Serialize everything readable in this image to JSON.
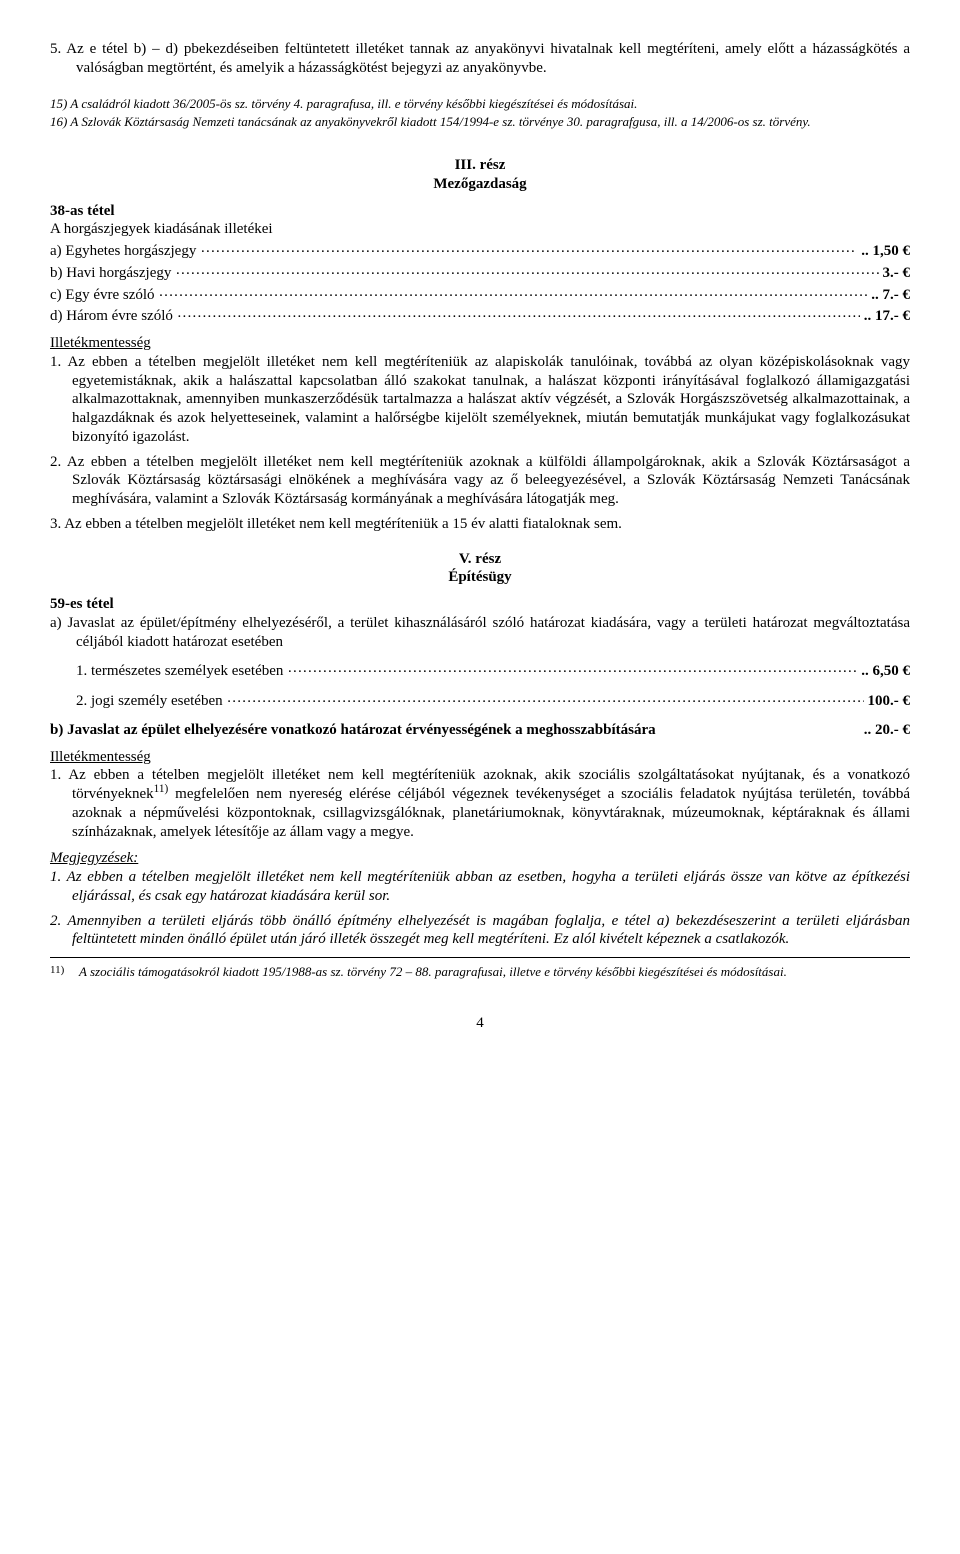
{
  "top_paragraph": {
    "num": "5.",
    "text": "Az e tétel b) – d) pbekezdéseiben feltüntetett illetéket tannak az anyakönyvi hivatalnak kell megtéríteni, amely előtt a házasságkötés a valóságban megtörtént, és amelyik a házasságkötést bejegyzi az anyakönyvbe."
  },
  "footnotes_top": {
    "f15": {
      "num": "15)",
      "text": "A családról kiadott 36/2005-ös sz. törvény 4. paragrafusa, ill. e törvény későbbi kiegészítései és módosításai."
    },
    "f16": {
      "num": "16)",
      "text": "A Szlovák Köztársaság Nemzeti tanácsának az anyakönyvekről kiadott 154/1994-e sz. törvénye 30. paragrafgusa, ill. a 14/2006-os sz. törvény."
    }
  },
  "section3": {
    "part_label": "III. rész",
    "part_title": "Mezőgazdaság",
    "item_heading": "38-as tétel",
    "subheading": "A horgászjegyek kiadásának illetékei",
    "rows": {
      "a": {
        "lead": "a)  Egyhetes horgászjegy",
        "tail": ".. 1,50 €"
      },
      "b": {
        "lead": "b)  Havi horgászjegy",
        "tail": " 3.- €"
      },
      "c": {
        "lead": "c)  Egy évre szóló",
        "tail": ".. 7.- €"
      },
      "d": {
        "lead": "d)  Három évre szóló",
        "tail": ".. 17.- €"
      }
    },
    "exempt_heading": "Illetékmentesség",
    "exempt": {
      "e1": {
        "num": "1.",
        "text": "Az ebben a tételben megjelölt illetéket nem kell megtéríteniük az alapiskolák tanulóinak, továbbá az olyan középiskolásoknak vagy egyetemistáknak, akik a halászattal kapcsolatban álló szakokat tanulnak, a halászat központi irányításával foglalkozó államigazgatási alkalmazottaknak, amennyiben munkaszerződésük tartalmazza a halászat aktív végzését, a Szlovák Horgászszövetség alkalmazottainak, a halgazdáknak és azok helyetteseinek, valamint a halőrségbe kijelölt személyeknek, miután bemutatják munkájukat vagy foglalkozásukat bizonyító igazolást."
      },
      "e2": {
        "num": "2.",
        "text": "Az ebben a tételben megjelölt illetéket nem kell megtéríteniük azoknak a külföldi állampolgároknak, akik a Szlovák Köztársaságot a Szlovák Köztársaság köztársasági elnökének a meghívására vagy az ő beleegyezésével, a Szlovák Köztársaság Nemzeti Tanácsának meghívására, valamint a Szlovák Köztársaság kormányának a meghívására látogatják meg."
      },
      "e3": {
        "num": "3.",
        "text": "Az ebben a tételben megjelölt illetéket nem kell megtéríteniük a 15 év alatti fiataloknak sem."
      }
    }
  },
  "section5": {
    "part_label": "V. rész",
    "part_title": "Építésügy",
    "item_heading": "59-es tétel",
    "a_intro": "a)  Javaslat az épület/építmény elhelyezéséről, a terület kihasználásáról szóló határozat kiadására, vagy a területi határozat megváltoztatása céljából kiadott határozat esetében",
    "a1": {
      "lead": "1.   természetes személyek esetében",
      "tail": ".. 6,50 €"
    },
    "a2": {
      "lead": "2.   jogi személy esetében",
      "tail": " 100.- €"
    },
    "b_lead": "b)  Javaslat   az   épület   elhelyezésére   vonatkozó   határozat   érvényességének   a meghosszabbítására",
    "b_tail": ".. 20.- €",
    "exempt_heading": "Illetékmentesség",
    "exempt": {
      "e1_num": "1.",
      "e1_pre": "Az ebben a tételben megjelölt illetéket nem kell megtéríteniük azoknak, akik szociális szolgáltatásokat nyújtanak, és a vonatkozó törvényeknek",
      "e1_sup": "11)",
      "e1_post": " megfelelően nem nyereség elérése céljából végeznek tevékenységet a szociális feladatok nyújtása területén, továbbá azoknak a népművelési központoknak, csillagvizsgálóknak, planetáriumoknak, könyvtáraknak, múzeumoknak, képtáraknak és állami színházaknak, amelyek létesítője az állam vagy a megye."
    },
    "remarks_heading": "Megjegyzések:",
    "remarks": {
      "r1": {
        "num": "1.",
        "text": "Az ebben a tételben megjelölt illetéket nem kell megtéríteniük abban az esetben, hogyha a területi eljárás össze van kötve az építkezési eljárással, és csak egy határozat kiadására kerül sor."
      },
      "r2": {
        "num": "2.",
        "text": "Amennyiben a területi eljárás több önálló építmény elhelyezését is magában foglalja, e tétel a) bekezdéseszerint a területi eljárásban feltüntetett minden önálló épület után járó illeték összegét meg kell megtéríteni. Ez alól kivételt képeznek a csatlakozók."
      }
    }
  },
  "footnote_bottom": {
    "num": "11)",
    "text": "A szociális támogatásokról kiadott 195/1988-as sz. törvény 72 – 88. paragrafusai, illetve e törvény későbbi kiegészítései és módosításai."
  },
  "page_number": "4"
}
